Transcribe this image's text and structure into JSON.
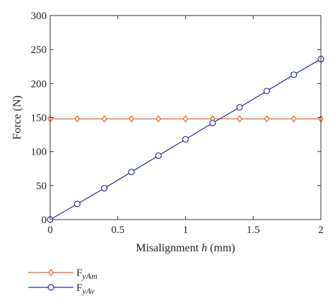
{
  "chart_data": {
    "type": "line",
    "title": "",
    "xlabel": {
      "prefix": "Misalignment ",
      "italic": "h",
      "suffix": " (mm)"
    },
    "ylabel": "Force (N)",
    "xlim": [
      0,
      2
    ],
    "ylim": [
      0,
      300
    ],
    "xticks": [
      0,
      0.5,
      1,
      1.5,
      2
    ],
    "xtick_labels": [
      "0",
      "0.5",
      "1",
      "1.5",
      "2"
    ],
    "yticks": [
      0,
      50,
      100,
      150,
      200,
      250,
      300
    ],
    "ytick_labels": [
      "0",
      "50",
      "100",
      "150",
      "200",
      "250",
      "300"
    ],
    "grid": false,
    "legend_position": "bottom-left, below plot",
    "x": [
      0,
      0.2,
      0.4,
      0.6,
      0.8,
      1.0,
      1.2,
      1.4,
      1.6,
      1.8,
      2.0
    ],
    "series": [
      {
        "name_main": "F",
        "name_sub": "yAm",
        "color": "#e0601c",
        "marker": "diamond",
        "values": [
          148,
          148,
          148,
          148,
          148,
          148,
          148,
          148,
          148,
          148,
          148
        ]
      },
      {
        "name_main": "F",
        "name_sub": "yAv",
        "color": "#2b2f8f",
        "marker": "circle",
        "values": [
          0,
          23,
          46,
          70,
          94,
          118,
          142,
          165,
          189,
          213,
          236
        ]
      }
    ]
  }
}
